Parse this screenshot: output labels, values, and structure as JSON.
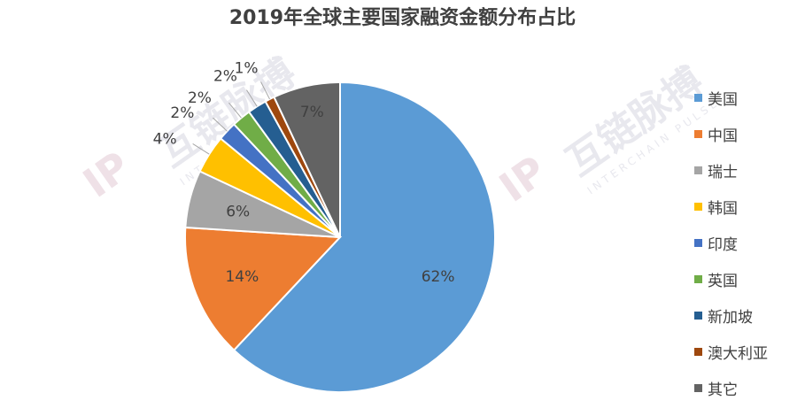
{
  "chart_data": {
    "type": "pie",
    "title": "2019年全球主要国家融资金额分布占比",
    "categories": [
      "美国",
      "中国",
      "瑞士",
      "韩国",
      "印度",
      "英国",
      "新加坡",
      "澳大利亚",
      "其它"
    ],
    "values": [
      62,
      14,
      6,
      4,
      2,
      2,
      2,
      1,
      7
    ],
    "labels": [
      "62%",
      "14%",
      "6%",
      "4%",
      "2%",
      "2%",
      "2%",
      "1%",
      "7%"
    ],
    "colors": [
      "#5B9BD5",
      "#ED7D31",
      "#A5A5A5",
      "#FFC000",
      "#4472C4",
      "#70AD47",
      "#255E91",
      "#9E480E",
      "#636363"
    ],
    "legend_position": "right"
  },
  "watermark": {
    "brand": "互链脉搏",
    "sub": "INTERCHAIN PULSE",
    "logo": "IP"
  }
}
